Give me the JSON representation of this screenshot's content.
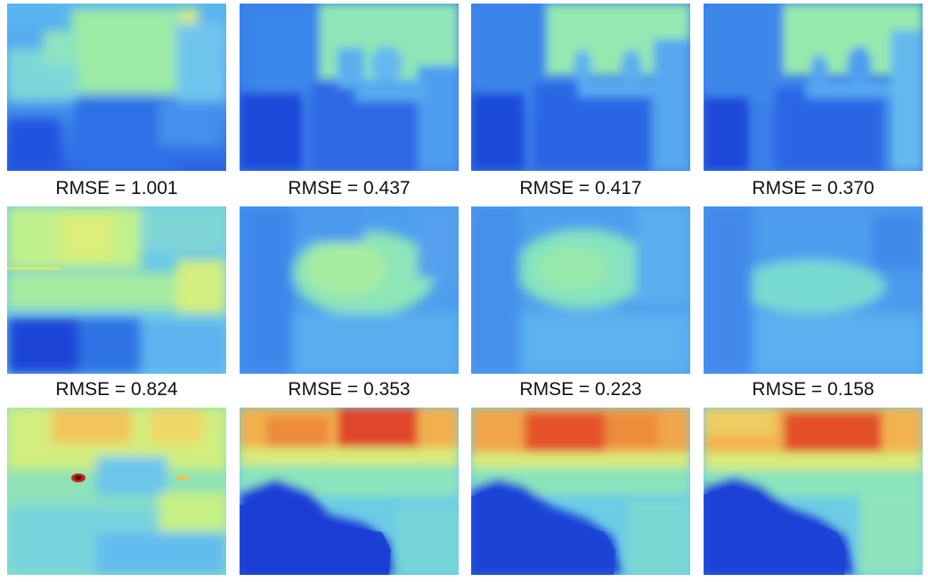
{
  "colormap": {
    "low": "#1035d8",
    "mid_low": "#3f8fef",
    "mid": "#67d2ee",
    "mid_high": "#aef0a0",
    "high": "#eee76a",
    "hot": "#f08a35",
    "max": "#d8281c"
  },
  "rows": [
    {
      "captions": [
        "RMSE = 1.001",
        "RMSE = 0.437",
        "RMSE = 0.417",
        "RMSE = 0.370"
      ]
    },
    {
      "captions": [
        "RMSE = 0.824",
        "RMSE = 0.353",
        "RMSE = 0.223",
        "RMSE = 0.158"
      ]
    },
    {
      "captions": []
    }
  ]
}
